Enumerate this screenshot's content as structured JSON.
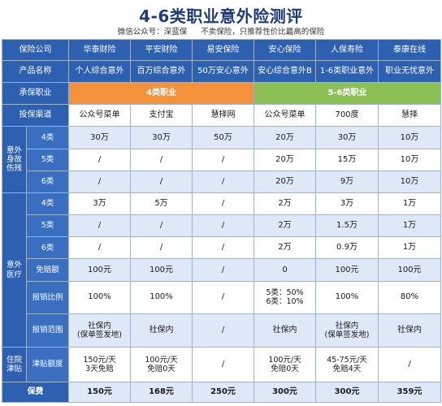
{
  "title": "4-6类职业意外险测评",
  "subtitle": {
    "wechat": "微信公众号：深蓝保",
    "note": "不卖保险，只推荐性价比最高的保险"
  },
  "labels": {
    "company": "保险公司",
    "product": "产品名称",
    "occupation": "承保职业",
    "channel": "投保渠道",
    "accident_group": "意外\n身故\n伤残",
    "medical_group": "意外\n医疗",
    "hospital_group": "住院\n津贴",
    "cls4": "4类",
    "cls5": "5类",
    "cls6": "6类",
    "deductible": "免赔额",
    "ratio": "报销比例",
    "scope": "报销范围",
    "allowance": "津贴额度",
    "premium": "保费"
  },
  "companies": [
    "华泰财险",
    "平安财险",
    "易安保险",
    "安心保险",
    "人保寿险",
    "泰康在线"
  ],
  "products": [
    "个人综合意外",
    "百万综合意外",
    "50万安心意外",
    "安心综合意外B",
    "1-6类职业意外",
    "职业无忧意外"
  ],
  "occupation_bands": {
    "band1": "4类职业",
    "band2": "5-6类职业"
  },
  "channels": [
    "公众号菜单",
    "支付宝",
    "慧择网",
    "公众号菜单",
    "700度",
    "慧择"
  ],
  "accident": {
    "cls4": [
      "30万",
      "30万",
      "50万",
      "20万",
      "30万",
      "10万"
    ],
    "cls5": [
      "/",
      "/",
      "/",
      "20万",
      "15万",
      "10万"
    ],
    "cls6": [
      "/",
      "/",
      "/",
      "20万",
      "9万",
      "10万"
    ]
  },
  "medical": {
    "cls4": [
      "3万",
      "5万",
      "/",
      "2万",
      "3万",
      "1万"
    ],
    "cls5": [
      "/",
      "/",
      "/",
      "2万",
      "1.5万",
      "1万"
    ],
    "cls6": [
      "/",
      "/",
      "/",
      "2万",
      "0.9万",
      "1万"
    ],
    "deductible": [
      "100元",
      "100元",
      "/",
      "0",
      "100元",
      "100元"
    ],
    "ratio": [
      "100%",
      "100%",
      "/",
      "5类：50%\n6类：10%",
      "100%",
      "80%"
    ],
    "scope": [
      "社保内\n(保单签发地)",
      "社保内",
      "/",
      "社保内",
      "社保内\n(保单签发地)",
      "社保内"
    ]
  },
  "hospital": {
    "allowance": [
      "150元/天\n3天免赔",
      "100元/天\n免赔0天",
      "/",
      "100元/天\n免赔0天",
      "45-75元/天\n免赔4天",
      "/"
    ]
  },
  "premiums": [
    "150元",
    "168元",
    "250元",
    "300元",
    "300元",
    "359元"
  ],
  "colors": {
    "header_blue": "#2e60b1",
    "band_orange": "#f3923a",
    "band_green": "#8cc054",
    "alt_row": "#dfe8f6",
    "title_blue": "#1f3c7a"
  }
}
